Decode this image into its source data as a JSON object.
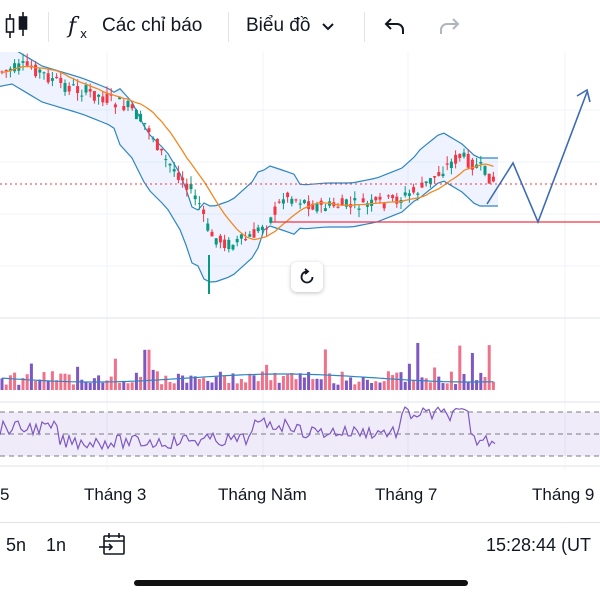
{
  "toolbar": {
    "indicators_label": "Các chỉ báo",
    "chart_type_label": "Biểu đồ"
  },
  "icons": {
    "candles": "candlestick-icon",
    "fx": "fx-icon",
    "chevron": "chevron-down-icon",
    "undo": "undo-icon",
    "redo": "redo-icon",
    "reset": "reset-icon",
    "range": "calendar-range-icon"
  },
  "x_axis": {
    "ticks": [
      "5",
      "Tháng 3",
      "Tháng Năm",
      "Tháng 7",
      "Tháng 9"
    ]
  },
  "bottom": {
    "ranges": [
      "5n",
      "1n"
    ],
    "clock": "15:28:44 (UT"
  },
  "colors": {
    "up": "#089981",
    "down": "#f23645",
    "bollinger": "#2962ff",
    "ma": "#ff9800",
    "rsi_band": "#7e57c2",
    "drawing": "#2962ff"
  }
}
